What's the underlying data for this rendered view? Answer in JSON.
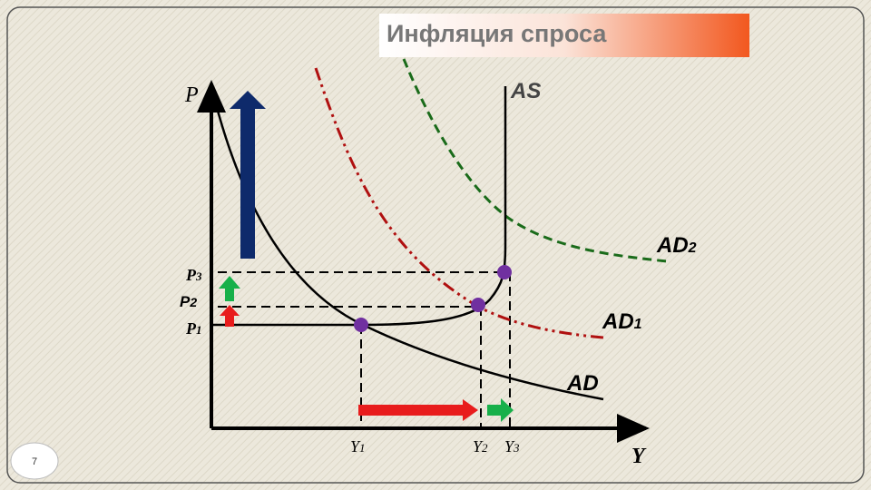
{
  "title": "Инфляция спроса",
  "axes": {
    "y": "P",
    "x": "Y"
  },
  "curves": {
    "as": "AS",
    "ad": "AD",
    "ad1": {
      "main": "AD",
      "sub": "1"
    },
    "ad2": {
      "main": "AD",
      "sub": "2"
    }
  },
  "prices": [
    {
      "main": "P",
      "sub": "1"
    },
    {
      "main": "P",
      "sub": "2"
    },
    {
      "main": "P",
      "sub": "3"
    }
  ],
  "outputs": [
    {
      "main": "Y",
      "sub": "1"
    },
    {
      "main": "Y",
      "sub": "2"
    },
    {
      "main": "Y",
      "sub": "3"
    }
  ],
  "slide_number": "7"
}
